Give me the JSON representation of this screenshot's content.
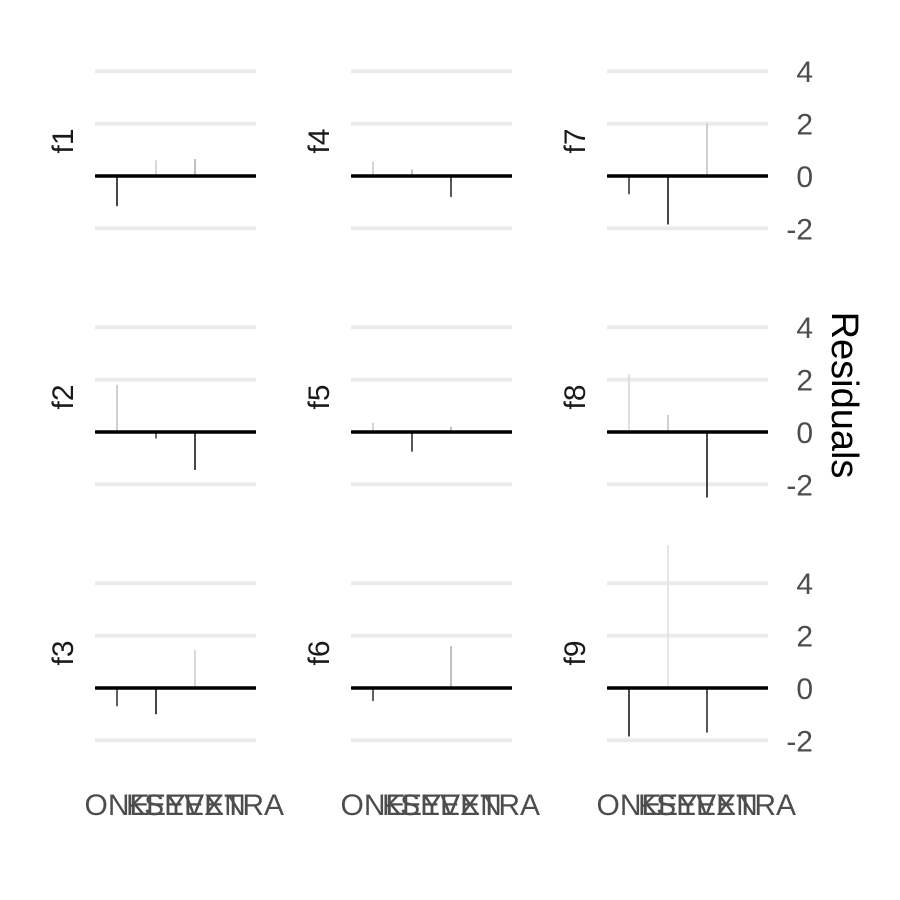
{
  "chart_data": {
    "type": "bar",
    "title": "",
    "xlabel": "",
    "ylabel": "Residuals",
    "categories": [
      "ONE",
      "KEY",
      "SEVEN",
      "EXTRA"
    ],
    "grid": true,
    "facet_layout": "3x3",
    "y_axis_position": "right",
    "facets": [
      {
        "label": "f1",
        "values": [
          -1.15,
          0.6,
          0.65,
          0.0
        ],
        "ylim": [
          -2.3,
          4.3
        ],
        "yticks": [
          -2,
          0,
          2,
          4
        ],
        "colors": [
          "#1a1a1a",
          "#cfcfcf",
          "#b0b0b0",
          "#1a1a1a"
        ]
      },
      {
        "label": "f4",
        "values": [
          0.55,
          0.25,
          -0.8,
          0.0
        ],
        "ylim": [
          -2.3,
          4.3
        ],
        "yticks": [
          -2,
          0,
          2,
          4
        ],
        "colors": [
          "#c9c9c9",
          "#b5b5b5",
          "#2e2e2e",
          "#1a1a1a"
        ]
      },
      {
        "label": "f7",
        "values": [
          -0.7,
          -1.85,
          2.0,
          0.0
        ],
        "ylim": [
          -2.3,
          4.3
        ],
        "yticks": [
          -2,
          0,
          2,
          4
        ],
        "colors": [
          "#3a3a3a",
          "#1a1a1a",
          "#c4c4c4",
          "#1a1a1a"
        ]
      },
      {
        "label": "f2",
        "values": [
          1.8,
          -0.25,
          -1.45,
          0.0
        ],
        "ylim": [
          -2.3,
          4.3
        ],
        "yticks": [
          -2,
          0,
          2,
          4
        ],
        "colors": [
          "#c4c4c4",
          "#4a4a4a",
          "#1a1a1a",
          "#1a1a1a"
        ]
      },
      {
        "label": "f5",
        "values": [
          0.35,
          -0.75,
          0.2,
          0.0
        ],
        "ylim": [
          -2.3,
          4.3
        ],
        "yticks": [
          -2,
          0,
          2,
          4
        ],
        "colors": [
          "#c9c9c9",
          "#2e2e2e",
          "#b5b5b5",
          "#1a1a1a"
        ]
      },
      {
        "label": "f8",
        "values": [
          2.2,
          0.65,
          -2.5,
          0.0
        ],
        "ylim": [
          -2.3,
          4.3
        ],
        "yticks": [
          -2,
          0,
          2,
          4
        ],
        "colors": [
          "#d9d9d9",
          "#c4c4c4",
          "#1a1a1a",
          "#1a1a1a"
        ]
      },
      {
        "label": "f3",
        "values": [
          -0.7,
          -1.0,
          1.45,
          0.0
        ],
        "ylim": [
          -2.3,
          4.3
        ],
        "yticks": [
          -2,
          0,
          2,
          4
        ],
        "colors": [
          "#3a3a3a",
          "#1a1a1a",
          "#cfcfcf",
          "#1a1a1a"
        ]
      },
      {
        "label": "f6",
        "values": [
          -0.5,
          0.0,
          1.6,
          0.0
        ],
        "ylim": [
          -2.3,
          4.3
        ],
        "yticks": [
          -2,
          0,
          2,
          4
        ],
        "colors": [
          "#3a3a3a",
          "#1a1a1a",
          "#b0b0b0",
          "#1a1a1a"
        ]
      },
      {
        "label": "f9",
        "values": [
          -1.85,
          5.45,
          -1.7,
          0.0
        ],
        "ylim": [
          -2.3,
          4.3
        ],
        "yticks": [
          -2,
          0,
          2,
          4
        ],
        "colors": [
          "#1a1a1a",
          "#e0e0e0",
          "#2e2e2e",
          "#1a1a1a"
        ]
      }
    ]
  }
}
